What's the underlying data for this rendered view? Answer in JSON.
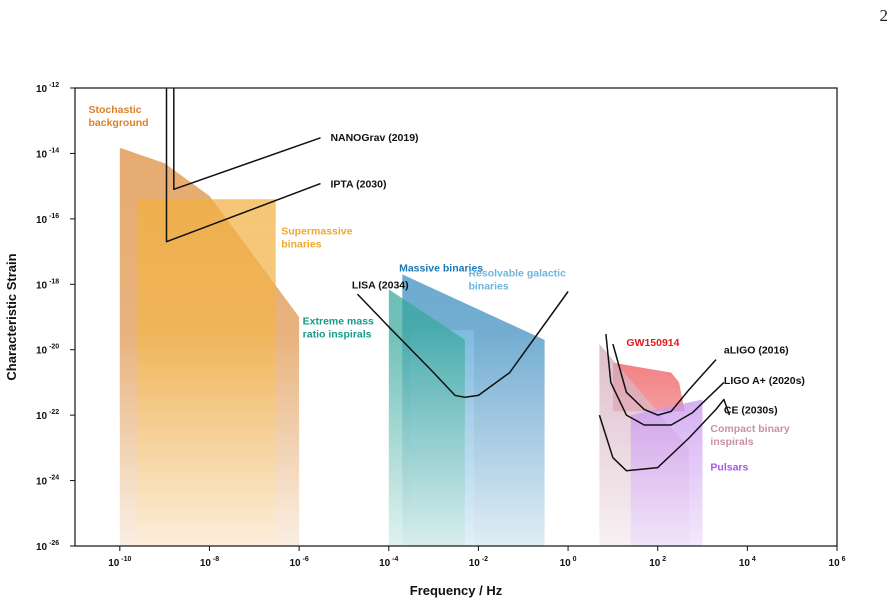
{
  "page_number": "2",
  "chart_data": {
    "type": "area",
    "xlabel": "Frequency / Hz",
    "ylabel": "Characteristic Strain",
    "x_scale": "log",
    "y_scale": "log",
    "xlim": [
      1e-11,
      1000000.0
    ],
    "ylim": [
      1e-26,
      1e-12
    ],
    "grid": false,
    "x_ticks": [
      {
        "value": 1e-10,
        "base": "10",
        "exp": "-10"
      },
      {
        "value": 1e-08,
        "base": "10",
        "exp": "-8"
      },
      {
        "value": 1e-06,
        "base": "10",
        "exp": "-6"
      },
      {
        "value": 0.0001,
        "base": "10",
        "exp": "-4"
      },
      {
        "value": 0.01,
        "base": "10",
        "exp": "-2"
      },
      {
        "value": 1,
        "base": "10",
        "exp": "0"
      },
      {
        "value": 100.0,
        "base": "10",
        "exp": "2"
      },
      {
        "value": 10000.0,
        "base": "10",
        "exp": "4"
      },
      {
        "value": 1000000.0,
        "base": "10",
        "exp": "6"
      }
    ],
    "y_ticks": [
      {
        "value": 1e-12,
        "base": "10",
        "exp": "-12"
      },
      {
        "value": 1e-14,
        "base": "10",
        "exp": "-14"
      },
      {
        "value": 1e-16,
        "base": "10",
        "exp": "-16"
      },
      {
        "value": 1e-18,
        "base": "10",
        "exp": "-18"
      },
      {
        "value": 1e-20,
        "base": "10",
        "exp": "-20"
      },
      {
        "value": 1e-22,
        "base": "10",
        "exp": "-22"
      },
      {
        "value": 1e-24,
        "base": "10",
        "exp": "-24"
      },
      {
        "value": 1e-26,
        "base": "10",
        "exp": "-26"
      }
    ],
    "sources": [
      {
        "name": "Stochastic background",
        "color": "#d9822b",
        "lines": [
          "Stochastic",
          "background"
        ],
        "polygon": [
          [
            1e-10,
            1.5e-14
          ],
          [
            1e-10,
            1e-26
          ],
          [
            1e-06,
            1e-26
          ],
          [
            1e-06,
            1e-19
          ],
          [
            1e-08,
            5e-16
          ],
          [
            1e-09,
            5e-15
          ]
        ],
        "label_at": [
          2e-11,
          1.7e-13
        ],
        "align": "start"
      },
      {
        "name": "Supermassive binaries",
        "color": "#f0a82d",
        "lines": [
          "Supermassive",
          "binaries"
        ],
        "polygon": [
          [
            2.5e-10,
            4e-16
          ],
          [
            3e-07,
            4e-16
          ],
          [
            3e-07,
            1e-26
          ],
          [
            2.5e-10,
            1e-26
          ]
        ],
        "label_at": [
          4e-07,
          3.3e-17
        ],
        "align": "start"
      },
      {
        "name": "Massive binaries",
        "color": "#1a78b4",
        "lines": [
          "Massive binaries"
        ],
        "polygon": [
          [
            0.0002,
            2e-18
          ],
          [
            0.3,
            2e-20
          ],
          [
            0.3,
            1e-26
          ],
          [
            0.0002,
            1e-26
          ]
        ],
        "label_at": [
          0.00017,
          2.5e-18
        ],
        "align": "start"
      },
      {
        "name": "Resolvable galactic binaries",
        "color": "#6cb6e0",
        "lines": [
          "Resolvable galactic",
          "binaries"
        ],
        "polygon": [
          [
            0.0003,
            4e-20
          ],
          [
            0.008,
            4e-20
          ],
          [
            0.008,
            1e-26
          ],
          [
            0.0003,
            1e-26
          ]
        ],
        "label_at": [
          0.006,
          1.7e-18
        ],
        "align": "start"
      },
      {
        "name": "Extreme mass ratio inspirals",
        "color": "#169a8c",
        "lines": [
          "Extreme mass",
          "ratio inspirals"
        ],
        "polygon": [
          [
            0.0001,
            7e-19
          ],
          [
            0.005,
            2e-20
          ],
          [
            0.005,
            1e-26
          ],
          [
            0.0001,
            1e-26
          ]
        ],
        "label_at": [
          1.2e-06,
          6e-20
        ],
        "align": "start"
      },
      {
        "name": "GW150914",
        "color": "#e8191f",
        "lines": [
          "GW150914"
        ],
        "polygon": [
          [
            10,
            4e-21
          ],
          [
            200,
            2e-21
          ],
          [
            300,
            1e-21
          ],
          [
            400,
            1.3e-22
          ],
          [
            10,
            1.3e-22
          ]
        ],
        "label_at": [
          20,
          1.3e-20
        ],
        "align": "start"
      },
      {
        "name": "Compact binary inspirals",
        "color": "#c890a8",
        "lines": [
          "Compact binary",
          "inspirals"
        ],
        "polygon": [
          [
            5,
            1.5e-20
          ],
          [
            500,
            1e-23
          ],
          [
            500,
            1e-26
          ],
          [
            5,
            1e-26
          ]
        ],
        "label_at": [
          1500,
          3e-23
        ],
        "align": "start"
      },
      {
        "name": "Pulsars",
        "color": "#a855e6",
        "lines": [
          "Pulsars"
        ],
        "polygon": [
          [
            25,
            1e-22
          ],
          [
            1000,
            3e-22
          ],
          [
            1000,
            1e-26
          ],
          [
            25,
            1e-26
          ]
        ],
        "label_at": [
          1500,
          2e-24
        ],
        "align": "start"
      }
    ],
    "detectors": [
      {
        "name": "NANOGrav (2019)",
        "points": [
          [
            1.6e-09,
            1e-12
          ],
          [
            1.6e-09,
            8e-16
          ],
          [
            3e-06,
            3e-14
          ]
        ],
        "label_at": [
          5e-06,
          3.2e-14
        ]
      },
      {
        "name": "IPTA (2030)",
        "points": [
          [
            1.1e-09,
            1e-12
          ],
          [
            1.1e-09,
            2e-17
          ],
          [
            3e-06,
            1.2e-15
          ]
        ],
        "label_at": [
          5e-06,
          1.2e-15
        ]
      },
      {
        "name": "LISA (2034)",
        "points": [
          [
            2e-05,
            5e-19
          ],
          [
            0.0001,
            5e-20
          ],
          [
            0.001,
            2e-21
          ],
          [
            0.003,
            4e-22
          ],
          [
            0.005,
            3.5e-22
          ],
          [
            0.01,
            4e-22
          ],
          [
            0.05,
            2e-21
          ],
          [
            1,
            6e-19
          ]
        ],
        "label_at": [
          1.5e-05,
          1e-18
        ]
      },
      {
        "name": "aLIGO (2016)",
        "points": [
          [
            10,
            1.5e-20
          ],
          [
            20,
            5e-22
          ],
          [
            50,
            1.5e-22
          ],
          [
            100,
            1e-22
          ],
          [
            200,
            1.3e-22
          ],
          [
            500,
            6e-22
          ],
          [
            2000,
            5e-21
          ]
        ],
        "label_at": [
          3000,
          1e-20
        ]
      },
      {
        "name": "LIGO A+ (2020s)",
        "points": [
          [
            7,
            3e-20
          ],
          [
            9,
            1e-21
          ],
          [
            20,
            1e-22
          ],
          [
            50,
            5e-23
          ],
          [
            200,
            5e-23
          ],
          [
            600,
            1.2e-22
          ],
          [
            3000,
            1e-21
          ]
        ],
        "label_at": [
          3000,
          1.2e-21
        ]
      },
      {
        "name": "CE (2030s)",
        "points": [
          [
            5,
            1e-22
          ],
          [
            10,
            5e-24
          ],
          [
            20,
            2e-24
          ],
          [
            100,
            2.5e-24
          ],
          [
            500,
            2e-23
          ],
          [
            2000,
            1.5e-22
          ],
          [
            3000,
            3e-22
          ],
          [
            4000,
            1e-22
          ]
        ],
        "label_at": [
          3000,
          1.5e-22
        ]
      }
    ]
  }
}
